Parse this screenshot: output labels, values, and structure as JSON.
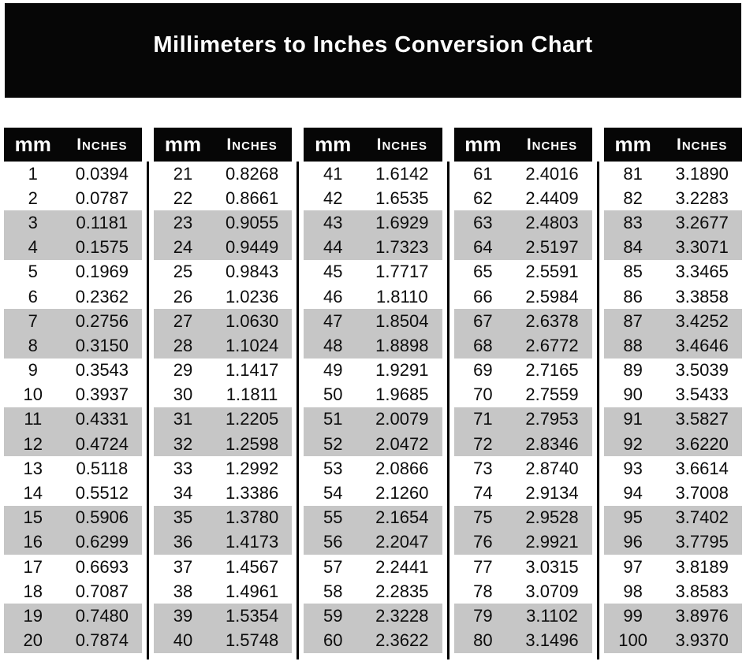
{
  "title": "Millimeters to Inches Conversion Chart",
  "colors": {
    "page_bg": "#ffffff",
    "banner_bg": "#060606",
    "banner_text": "#ffffff",
    "header_bg": "#060606",
    "header_text": "#ffffff",
    "stripe": "#c6c6c6",
    "row_text": "#0d0d0d",
    "divider": "#000000"
  },
  "chart_data": {
    "type": "table",
    "title": "Millimeters to Inches Conversion Chart",
    "col_headers": [
      "mm",
      "Inches"
    ],
    "stripe_pattern": "rows grouped in pairs, alternating white and gray starting with white",
    "tables": [
      [
        [
          "1",
          "0.0394"
        ],
        [
          "2",
          "0.0787"
        ],
        [
          "3",
          "0.1181"
        ],
        [
          "4",
          "0.1575"
        ],
        [
          "5",
          "0.1969"
        ],
        [
          "6",
          "0.2362"
        ],
        [
          "7",
          "0.2756"
        ],
        [
          "8",
          "0.3150"
        ],
        [
          "9",
          "0.3543"
        ],
        [
          "10",
          "0.3937"
        ],
        [
          "11",
          "0.4331"
        ],
        [
          "12",
          "0.4724"
        ],
        [
          "13",
          "0.5118"
        ],
        [
          "14",
          "0.5512"
        ],
        [
          "15",
          "0.5906"
        ],
        [
          "16",
          "0.6299"
        ],
        [
          "17",
          "0.6693"
        ],
        [
          "18",
          "0.7087"
        ],
        [
          "19",
          "0.7480"
        ],
        [
          "20",
          "0.7874"
        ]
      ],
      [
        [
          "21",
          "0.8268"
        ],
        [
          "22",
          "0.8661"
        ],
        [
          "23",
          "0.9055"
        ],
        [
          "24",
          "0.9449"
        ],
        [
          "25",
          "0.9843"
        ],
        [
          "26",
          "1.0236"
        ],
        [
          "27",
          "1.0630"
        ],
        [
          "28",
          "1.1024"
        ],
        [
          "29",
          "1.1417"
        ],
        [
          "30",
          "1.1811"
        ],
        [
          "31",
          "1.2205"
        ],
        [
          "32",
          "1.2598"
        ],
        [
          "33",
          "1.2992"
        ],
        [
          "34",
          "1.3386"
        ],
        [
          "35",
          "1.3780"
        ],
        [
          "36",
          "1.4173"
        ],
        [
          "37",
          "1.4567"
        ],
        [
          "38",
          "1.4961"
        ],
        [
          "39",
          "1.5354"
        ],
        [
          "40",
          "1.5748"
        ]
      ],
      [
        [
          "41",
          "1.6142"
        ],
        [
          "42",
          "1.6535"
        ],
        [
          "43",
          "1.6929"
        ],
        [
          "44",
          "1.7323"
        ],
        [
          "45",
          "1.7717"
        ],
        [
          "46",
          "1.8110"
        ],
        [
          "47",
          "1.8504"
        ],
        [
          "48",
          "1.8898"
        ],
        [
          "49",
          "1.9291"
        ],
        [
          "50",
          "1.9685"
        ],
        [
          "51",
          "2.0079"
        ],
        [
          "52",
          "2.0472"
        ],
        [
          "53",
          "2.0866"
        ],
        [
          "54",
          "2.1260"
        ],
        [
          "55",
          "2.1654"
        ],
        [
          "56",
          "2.2047"
        ],
        [
          "57",
          "2.2441"
        ],
        [
          "58",
          "2.2835"
        ],
        [
          "59",
          "2.3228"
        ],
        [
          "60",
          "2.3622"
        ]
      ],
      [
        [
          "61",
          "2.4016"
        ],
        [
          "62",
          "2.4409"
        ],
        [
          "63",
          "2.4803"
        ],
        [
          "64",
          "2.5197"
        ],
        [
          "65",
          "2.5591"
        ],
        [
          "66",
          "2.5984"
        ],
        [
          "67",
          "2.6378"
        ],
        [
          "68",
          "2.6772"
        ],
        [
          "69",
          "2.7165"
        ],
        [
          "70",
          "2.7559"
        ],
        [
          "71",
          "2.7953"
        ],
        [
          "72",
          "2.8346"
        ],
        [
          "73",
          "2.8740"
        ],
        [
          "74",
          "2.9134"
        ],
        [
          "75",
          "2.9528"
        ],
        [
          "76",
          "2.9921"
        ],
        [
          "77",
          "3.0315"
        ],
        [
          "78",
          "3.0709"
        ],
        [
          "79",
          "3.1102"
        ],
        [
          "80",
          "3.1496"
        ]
      ],
      [
        [
          "81",
          "3.1890"
        ],
        [
          "82",
          "3.2283"
        ],
        [
          "83",
          "3.2677"
        ],
        [
          "84",
          "3.3071"
        ],
        [
          "85",
          "3.3465"
        ],
        [
          "86",
          "3.3858"
        ],
        [
          "87",
          "3.4252"
        ],
        [
          "88",
          "3.4646"
        ],
        [
          "89",
          "3.5039"
        ],
        [
          "90",
          "3.5433"
        ],
        [
          "91",
          "3.5827"
        ],
        [
          "92",
          "3.6220"
        ],
        [
          "93",
          "3.6614"
        ],
        [
          "94",
          "3.7008"
        ],
        [
          "95",
          "3.7402"
        ],
        [
          "96",
          "3.7795"
        ],
        [
          "97",
          "3.8189"
        ],
        [
          "98",
          "3.8583"
        ],
        [
          "99",
          "3.8976"
        ],
        [
          "100",
          "3.9370"
        ]
      ]
    ]
  }
}
